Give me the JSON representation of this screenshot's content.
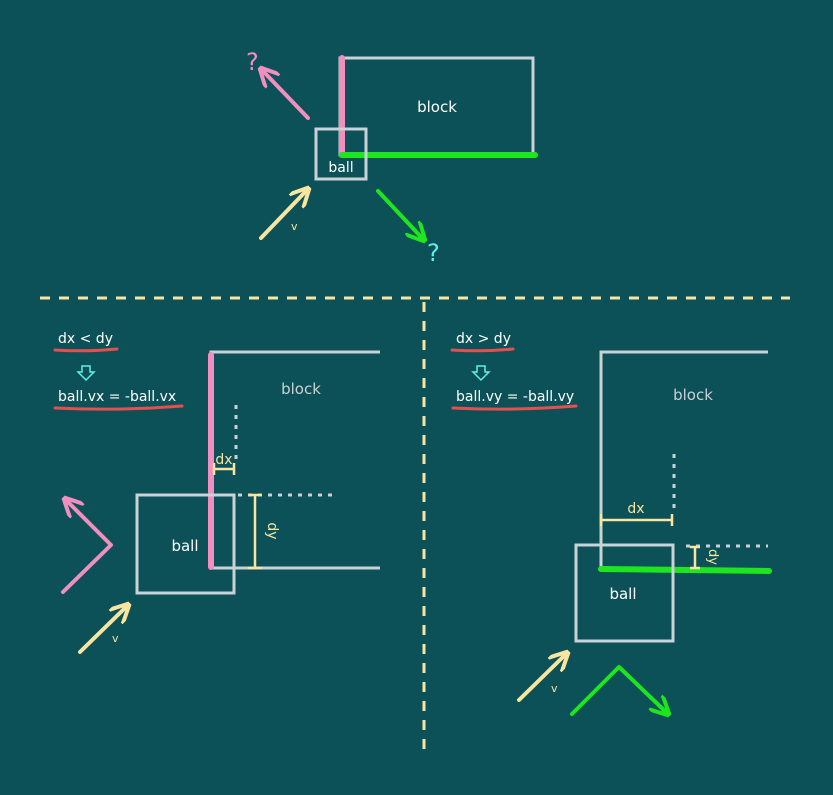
{
  "colors": {
    "background": "#0b5157",
    "outline": "#c9d2d6",
    "pink": "#f18fbf",
    "green": "#1ee61e",
    "yellow": "#f7e5a0",
    "underline": "#e45050",
    "cyan": "#5ff0e8"
  },
  "top": {
    "block_label": "block",
    "ball_label": "ball",
    "velocity_label": "v",
    "question_pink": "?",
    "question_green": "?"
  },
  "left": {
    "condition": "dx < dy",
    "result": "ball.vx = -ball.vx",
    "arrow_icon": "down-arrow-icon",
    "block_label": "block",
    "ball_label": "ball",
    "dx_label": "dx",
    "dy_label": "dy",
    "velocity_label": "v"
  },
  "right": {
    "condition": "dx > dy",
    "result": "ball.vy = -ball.vy",
    "arrow_icon": "down-arrow-icon",
    "block_label": "block",
    "ball_label": "ball",
    "dx_label": "dx",
    "dy_label": "dy",
    "velocity_label": "v"
  }
}
